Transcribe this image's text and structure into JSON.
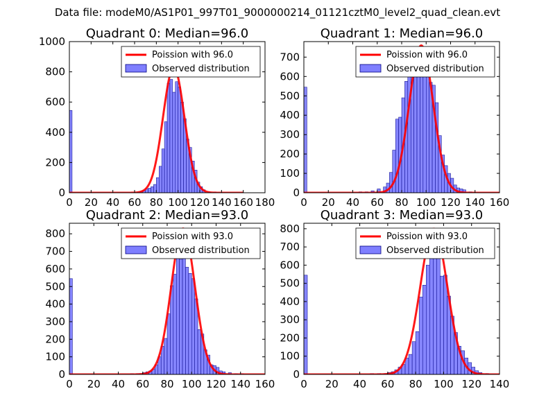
{
  "suptitle": "Data file: modeM0/AS1P01_997T01_9000000214_01121cztM0_level2_quad_clean.evt",
  "colors": {
    "bar": "#7f7fff",
    "bar_edge": "#000080",
    "line": "#ff0000"
  },
  "chart_data": [
    {
      "type": "bar",
      "title": "Quadrant 0: Median=96.0",
      "median": 96.0,
      "legend_line": "Poission with 96.0",
      "legend_bar": "Observed distribution",
      "legend_position": "top-right",
      "xlim": [
        0,
        180
      ],
      "ylim": [
        0,
        1000
      ],
      "xticks": [
        0,
        20,
        40,
        60,
        80,
        100,
        120,
        140,
        160,
        180
      ],
      "yticks": [
        0,
        200,
        400,
        600,
        800,
        1000
      ],
      "bin_width": 2.5,
      "bins": [
        [
          0,
          545
        ],
        [
          62.5,
          5
        ],
        [
          65,
          10
        ],
        [
          67.5,
          15
        ],
        [
          70,
          25
        ],
        [
          72.5,
          30
        ],
        [
          75,
          40
        ],
        [
          77.5,
          55
        ],
        [
          80,
          100
        ],
        [
          82.5,
          175
        ],
        [
          85,
          290
        ],
        [
          87.5,
          470
        ],
        [
          90,
          725
        ],
        [
          92.5,
          750
        ],
        [
          95,
          665
        ],
        [
          97.5,
          735
        ],
        [
          100,
          700
        ],
        [
          102.5,
          600
        ],
        [
          105,
          490
        ],
        [
          107.5,
          355
        ],
        [
          110,
          300
        ],
        [
          112.5,
          210
        ],
        [
          115,
          150
        ],
        [
          117.5,
          70
        ],
        [
          120,
          40
        ],
        [
          122.5,
          20
        ],
        [
          127.5,
          5
        ],
        [
          132.5,
          5
        ]
      ],
      "poisson_peak": 830
    },
    {
      "type": "bar",
      "title": "Quadrant 1: Median=96.0",
      "median": 96.0,
      "legend_line": "Poission with 96.0",
      "legend_bar": "Observed distribution",
      "legend_position": "top-right",
      "xlim": [
        0,
        160
      ],
      "ylim": [
        0,
        780
      ],
      "xticks": [
        0,
        20,
        40,
        60,
        80,
        100,
        120,
        140,
        160
      ],
      "yticks": [
        0,
        100,
        200,
        300,
        400,
        500,
        600,
        700
      ],
      "bin_width": 2.5,
      "bins": [
        [
          0,
          545
        ],
        [
          45,
          5
        ],
        [
          50,
          5
        ],
        [
          55,
          10
        ],
        [
          60,
          20
        ],
        [
          65,
          30
        ],
        [
          67.5,
          50
        ],
        [
          70,
          105
        ],
        [
          72.5,
          220
        ],
        [
          75,
          380
        ],
        [
          77.5,
          390
        ],
        [
          80,
          490
        ],
        [
          82.5,
          575
        ],
        [
          85,
          625
        ],
        [
          87.5,
          700
        ],
        [
          90,
          745
        ],
        [
          92.5,
          725
        ],
        [
          95,
          665
        ],
        [
          97.5,
          745
        ],
        [
          100,
          675
        ],
        [
          102.5,
          570
        ],
        [
          105,
          555
        ],
        [
          107.5,
          465
        ],
        [
          110,
          295
        ],
        [
          112.5,
          195
        ],
        [
          115,
          140
        ],
        [
          117.5,
          100
        ],
        [
          120,
          75
        ],
        [
          122.5,
          40
        ],
        [
          125,
          25
        ],
        [
          127.5,
          20
        ],
        [
          130,
          15
        ],
        [
          135,
          5
        ]
      ],
      "poisson_peak": 760
    },
    {
      "type": "bar",
      "title": "Quadrant 2: Median=93.0",
      "median": 93.0,
      "legend_line": "Poission with 93.0",
      "legend_bar": "Observed distribution",
      "legend_position": "top-right",
      "xlim": [
        0,
        160
      ],
      "ylim": [
        0,
        860
      ],
      "xticks": [
        0,
        20,
        40,
        60,
        80,
        100,
        120,
        140,
        160
      ],
      "yticks": [
        0,
        100,
        200,
        300,
        400,
        500,
        600,
        700,
        800
      ],
      "bin_width": 2.5,
      "bins": [
        [
          0,
          545
        ],
        [
          50,
          5
        ],
        [
          55,
          5
        ],
        [
          57.5,
          5
        ],
        [
          60,
          10
        ],
        [
          62.5,
          15
        ],
        [
          65,
          20
        ],
        [
          67.5,
          30
        ],
        [
          70,
          55
        ],
        [
          72.5,
          100
        ],
        [
          75,
          160
        ],
        [
          77.5,
          205
        ],
        [
          80,
          345
        ],
        [
          82.5,
          505
        ],
        [
          85,
          570
        ],
        [
          87.5,
          705
        ],
        [
          90,
          655
        ],
        [
          92.5,
          665
        ],
        [
          95,
          610
        ],
        [
          97.5,
          575
        ],
        [
          100,
          545
        ],
        [
          102.5,
          430
        ],
        [
          105,
          255
        ],
        [
          107.5,
          230
        ],
        [
          110,
          140
        ],
        [
          112.5,
          110
        ],
        [
          115,
          55
        ],
        [
          117.5,
          50
        ],
        [
          120,
          40
        ],
        [
          122.5,
          20
        ],
        [
          125,
          15
        ],
        [
          130,
          10
        ],
        [
          135,
          5
        ],
        [
          140,
          5
        ]
      ],
      "poisson_peak": 830
    },
    {
      "type": "bar",
      "title": "Quadrant 3: Median=93.0",
      "median": 93.0,
      "legend_line": "Poission with 93.0",
      "legend_bar": "Observed distribution",
      "legend_position": "top-right",
      "xlim": [
        0,
        140
      ],
      "ylim": [
        0,
        830
      ],
      "xticks": [
        0,
        20,
        40,
        60,
        80,
        100,
        120,
        140
      ],
      "yticks": [
        0,
        100,
        200,
        300,
        400,
        500,
        600,
        700,
        800
      ],
      "bin_width": 2.5,
      "bins": [
        [
          0,
          545
        ],
        [
          47.5,
          5
        ],
        [
          52.5,
          5
        ],
        [
          57.5,
          5
        ],
        [
          60,
          10
        ],
        [
          62.5,
          15
        ],
        [
          65,
          25
        ],
        [
          67.5,
          40
        ],
        [
          70,
          55
        ],
        [
          72.5,
          90
        ],
        [
          75,
          110
        ],
        [
          77.5,
          180
        ],
        [
          80,
          235
        ],
        [
          82.5,
          425
        ],
        [
          85,
          490
        ],
        [
          87.5,
          600
        ],
        [
          90,
          655
        ],
        [
          92.5,
          770
        ],
        [
          95,
          690
        ],
        [
          97.5,
          540
        ],
        [
          100,
          545
        ],
        [
          102.5,
          430
        ],
        [
          105,
          320
        ],
        [
          107.5,
          230
        ],
        [
          110,
          155
        ],
        [
          112.5,
          130
        ],
        [
          115,
          90
        ],
        [
          117.5,
          65
        ],
        [
          120,
          40
        ],
        [
          122.5,
          20
        ],
        [
          125,
          10
        ],
        [
          130,
          5
        ]
      ],
      "poisson_peak": 800
    }
  ]
}
